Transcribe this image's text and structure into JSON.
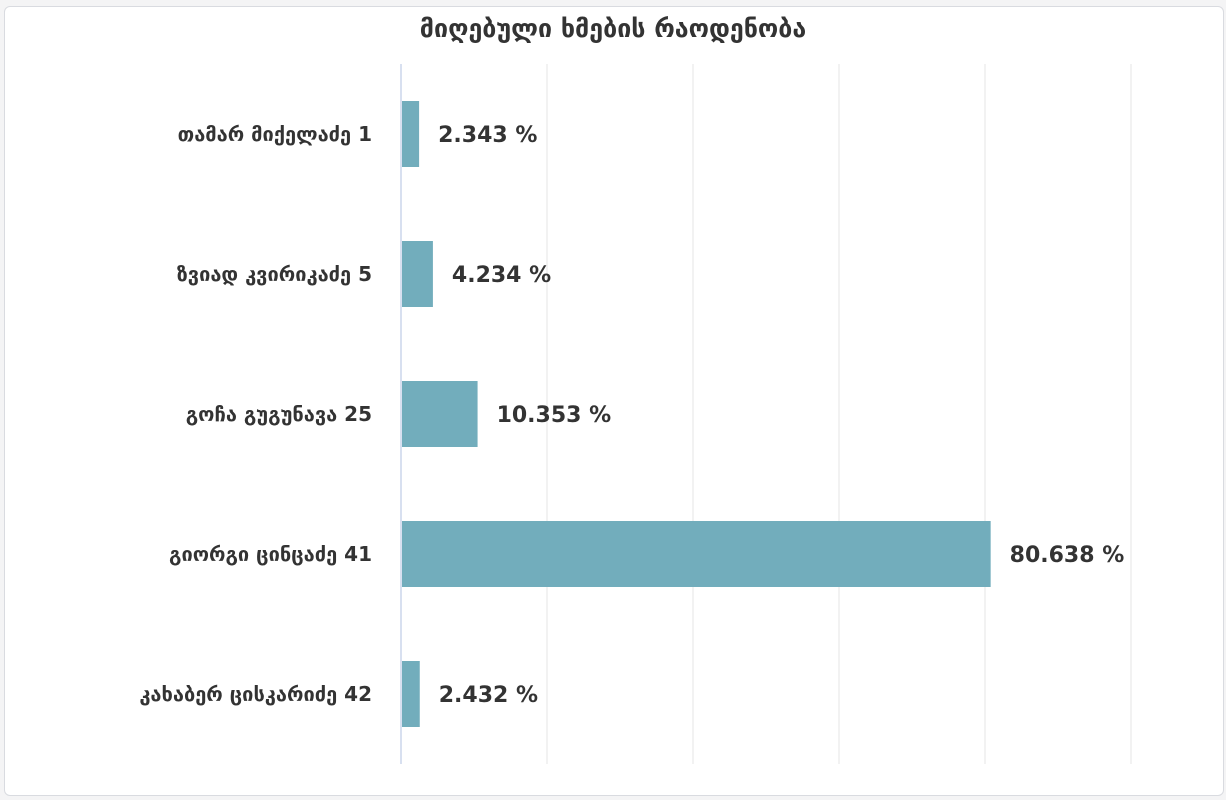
{
  "chart_data": {
    "type": "bar",
    "orientation": "horizontal",
    "title": "მიღებული ხმების რაოდენობა",
    "categories": [
      "თამარ მიქელაძე 1",
      "ზვიად კვირიკაძე 5",
      "გოჩა გუგუნავა 25",
      "გიორგი ცინცაძე 41",
      "კახაბერ ცისკარიძე 42"
    ],
    "values": [
      2.343,
      4.234,
      10.353,
      80.638,
      2.432
    ],
    "value_labels": [
      "2.343 %",
      "4.234 %",
      "10.353 %",
      "80.638 %",
      "2.432 %"
    ],
    "xlim": [
      0,
      100
    ],
    "grid": true,
    "legend": "none",
    "bar_color": "#72adbc"
  }
}
